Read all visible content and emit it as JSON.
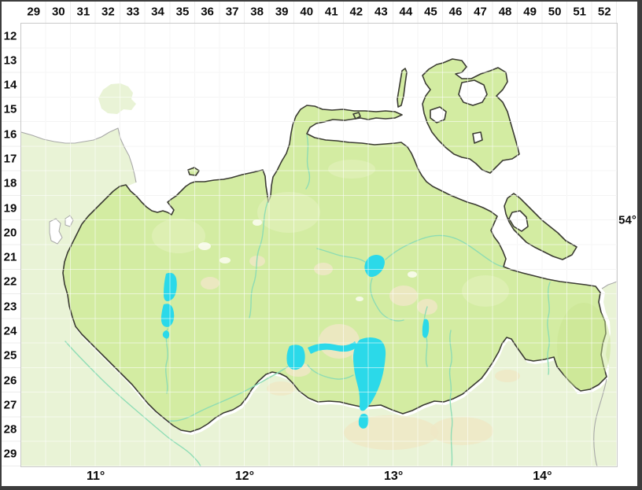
{
  "map": {
    "region": "grid-atlas-map",
    "axes": {
      "top": [
        "29",
        "30",
        "31",
        "32",
        "33",
        "34",
        "35",
        "36",
        "37",
        "38",
        "39",
        "40",
        "41",
        "42",
        "43",
        "44",
        "45",
        "46",
        "47",
        "48",
        "49",
        "50",
        "51",
        "52"
      ],
      "left": [
        "12",
        "13",
        "14",
        "15",
        "16",
        "17",
        "18",
        "19",
        "20",
        "21",
        "22",
        "23",
        "24",
        "25",
        "26",
        "27",
        "28",
        "29"
      ],
      "bottom": [
        "11°",
        "12°",
        "13°",
        "14°"
      ],
      "right": [
        "54°"
      ]
    },
    "grid": {
      "columns": 24,
      "rows": 18
    },
    "colors": {
      "sea": "#ffffff",
      "state_land": "#d3eca2",
      "neighbor_land": "#e9f3d6",
      "state_border": "#3b3b33",
      "neighbor_border": "#a8a8a8",
      "lake": "#2bd9e9",
      "river": "#8adbb4",
      "grid_line": "#e7e7e7",
      "sand_patch": "#efe8c5"
    }
  }
}
